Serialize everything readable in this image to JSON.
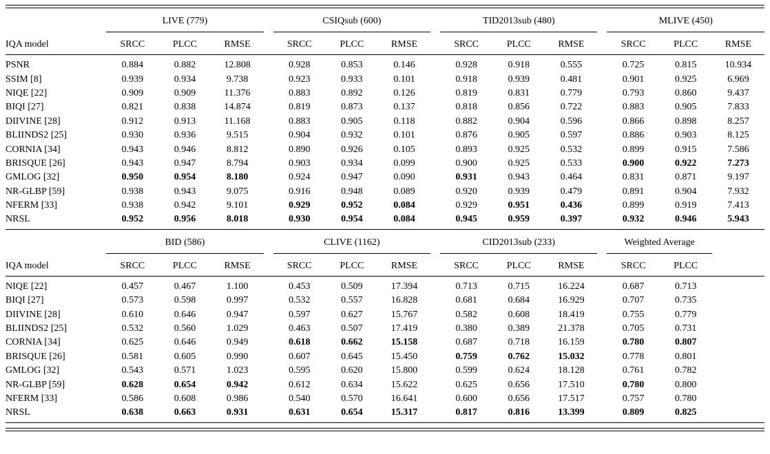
{
  "page": {
    "background": "#ffffff",
    "text_color": "#000000",
    "rule_color": "#000000"
  },
  "chart_data": {
    "type": "table",
    "tables": [
      {
        "name": "top",
        "row_header": "IQA model",
        "groups": [
          {
            "label": "LIVE (779)",
            "metrics": [
              "SRCC",
              "PLCC",
              "RMSE"
            ]
          },
          {
            "label": "CSIQsub (600)",
            "metrics": [
              "SRCC",
              "PLCC",
              "RMSE"
            ]
          },
          {
            "label": "TID2013sub (480)",
            "metrics": [
              "SRCC",
              "PLCC",
              "RMSE"
            ]
          },
          {
            "label": "MLIVE (450)",
            "metrics": [
              "SRCC",
              "PLCC",
              "RMSE"
            ]
          }
        ],
        "rows": [
          {
            "model": "PSNR",
            "values": [
              "0.884",
              "0.882",
              "12.808",
              "0.928",
              "0.853",
              "0.146",
              "0.928",
              "0.918",
              "0.555",
              "0.725",
              "0.815",
              "10.934"
            ],
            "bold": []
          },
          {
            "model": "SSIM [8]",
            "values": [
              "0.939",
              "0.934",
              "9.738",
              "0.923",
              "0.933",
              "0.101",
              "0.918",
              "0.939",
              "0.481",
              "0.901",
              "0.925",
              "6.969"
            ],
            "bold": []
          },
          {
            "model": "NIQE [22]",
            "values": [
              "0.909",
              "0.909",
              "11.376",
              "0.883",
              "0.892",
              "0.126",
              "0.819",
              "0.831",
              "0.779",
              "0.793",
              "0.860",
              "9.437"
            ],
            "bold": []
          },
          {
            "model": "BIQI [27]",
            "values": [
              "0.821",
              "0.838",
              "14.874",
              "0.819",
              "0.873",
              "0.137",
              "0.818",
              "0.856",
              "0.722",
              "0.883",
              "0.905",
              "7.833"
            ],
            "bold": []
          },
          {
            "model": "DIIVINE [28]",
            "values": [
              "0.912",
              "0.913",
              "11.168",
              "0.883",
              "0.905",
              "0.118",
              "0.882",
              "0.904",
              "0.596",
              "0.866",
              "0.898",
              "8.257"
            ],
            "bold": []
          },
          {
            "model": "BLIINDS2 [25]",
            "values": [
              "0.930",
              "0.936",
              "9.515",
              "0.904",
              "0.932",
              "0.101",
              "0.876",
              "0.905",
              "0.597",
              "0.886",
              "0.903",
              "8.125"
            ],
            "bold": []
          },
          {
            "model": "CORNIA [34]",
            "values": [
              "0.943",
              "0.946",
              "8.812",
              "0.890",
              "0.926",
              "0.105",
              "0.893",
              "0.925",
              "0.532",
              "0.899",
              "0.915",
              "7.586"
            ],
            "bold": []
          },
          {
            "model": "BRISQUE [26]",
            "values": [
              "0.943",
              "0.947",
              "8.794",
              "0.903",
              "0.934",
              "0.099",
              "0.900",
              "0.925",
              "0.533",
              "0.900",
              "0.922",
              "7.273"
            ],
            "bold": [
              9,
              10,
              11
            ]
          },
          {
            "model": "GMLOG [32]",
            "values": [
              "0.950",
              "0.954",
              "8.180",
              "0.924",
              "0.947",
              "0.090",
              "0.931",
              "0.943",
              "0.464",
              "0.831",
              "0.871",
              "9.197"
            ],
            "bold": [
              0,
              1,
              2,
              6
            ]
          },
          {
            "model": "NR-GLBP [59]",
            "values": [
              "0.938",
              "0.943",
              "9.075",
              "0.916",
              "0.948",
              "0.089",
              "0.920",
              "0.939",
              "0.479",
              "0.891",
              "0.904",
              "7.932"
            ],
            "bold": []
          },
          {
            "model": "NFERM [33]",
            "values": [
              "0.938",
              "0.942",
              "9.101",
              "0.929",
              "0.952",
              "0.084",
              "0.929",
              "0.951",
              "0.436",
              "0.899",
              "0.919",
              "7.413"
            ],
            "bold": [
              3,
              4,
              5,
              7,
              8
            ]
          },
          {
            "model": "NRSL",
            "values": [
              "0.952",
              "0.956",
              "8.018",
              "0.930",
              "0.954",
              "0.084",
              "0.945",
              "0.959",
              "0.397",
              "0.932",
              "0.946",
              "5.943"
            ],
            "bold": [
              0,
              1,
              2,
              3,
              4,
              5,
              6,
              7,
              8,
              9,
              10,
              11
            ]
          }
        ]
      },
      {
        "name": "bottom",
        "row_header": "IQA model",
        "groups": [
          {
            "label": "BID (586)",
            "metrics": [
              "SRCC",
              "PLCC",
              "RMSE"
            ]
          },
          {
            "label": "CLIVE (1162)",
            "metrics": [
              "SRCC",
              "PLCC",
              "RMSE"
            ]
          },
          {
            "label": "CID2013sub (233)",
            "metrics": [
              "SRCC",
              "PLCC",
              "RMSE"
            ]
          },
          {
            "label": "Weighted Average",
            "metrics": [
              "SRCC",
              "PLCC"
            ]
          }
        ],
        "rows": [
          {
            "model": "NIQE [22]",
            "values": [
              "0.457",
              "0.467",
              "1.100",
              "0.453",
              "0.509",
              "17.394",
              "0.713",
              "0.715",
              "16.224",
              "0.687",
              "0.713"
            ],
            "bold": []
          },
          {
            "model": "BIQI [27]",
            "values": [
              "0.573",
              "0.598",
              "0.997",
              "0.532",
              "0.557",
              "16.828",
              "0.681",
              "0.684",
              "16.929",
              "0.707",
              "0.735"
            ],
            "bold": []
          },
          {
            "model": "DIIVINE [28]",
            "values": [
              "0.610",
              "0.646",
              "0.947",
              "0.597",
              "0.627",
              "15.767",
              "0.582",
              "0.608",
              "18.419",
              "0.755",
              "0.779"
            ],
            "bold": []
          },
          {
            "model": "BLIINDS2 [25]",
            "values": [
              "0.532",
              "0.560",
              "1.029",
              "0.463",
              "0.507",
              "17.419",
              "0.380",
              "0.389",
              "21.378",
              "0.705",
              "0.731"
            ],
            "bold": []
          },
          {
            "model": "CORNIA [34]",
            "values": [
              "0.625",
              "0.646",
              "0.949",
              "0.618",
              "0.662",
              "15.158",
              "0.687",
              "0.718",
              "16.159",
              "0.780",
              "0.807"
            ],
            "bold": [
              3,
              4,
              5,
              9,
              10
            ]
          },
          {
            "model": "BRISQUE [26]",
            "values": [
              "0.581",
              "0.605",
              "0.990",
              "0.607",
              "0.645",
              "15.450",
              "0.759",
              "0.762",
              "15.032",
              "0.778",
              "0.801"
            ],
            "bold": [
              6,
              7,
              8
            ]
          },
          {
            "model": "GMLOG [32]",
            "values": [
              "0.543",
              "0.571",
              "1.023",
              "0.595",
              "0.620",
              "15.800",
              "0.599",
              "0.624",
              "18.128",
              "0.761",
              "0.782"
            ],
            "bold": []
          },
          {
            "model": "NR-GLBP [59]",
            "values": [
              "0.628",
              "0.654",
              "0.942",
              "0.612",
              "0.634",
              "15.622",
              "0.625",
              "0.656",
              "17.510",
              "0.780",
              "0.800"
            ],
            "bold": [
              0,
              1,
              2,
              9
            ]
          },
          {
            "model": "NFERM [33]",
            "values": [
              "0.586",
              "0.608",
              "0.986",
              "0.540",
              "0.570",
              "16.641",
              "0.600",
              "0.656",
              "17.517",
              "0.757",
              "0.780"
            ],
            "bold": []
          },
          {
            "model": "NRSL",
            "values": [
              "0.638",
              "0.663",
              "0.931",
              "0.631",
              "0.654",
              "15.317",
              "0.817",
              "0.816",
              "13.399",
              "0.809",
              "0.825"
            ],
            "bold": [
              0,
              1,
              2,
              3,
              4,
              5,
              6,
              7,
              8,
              9,
              10
            ]
          }
        ]
      }
    ]
  }
}
